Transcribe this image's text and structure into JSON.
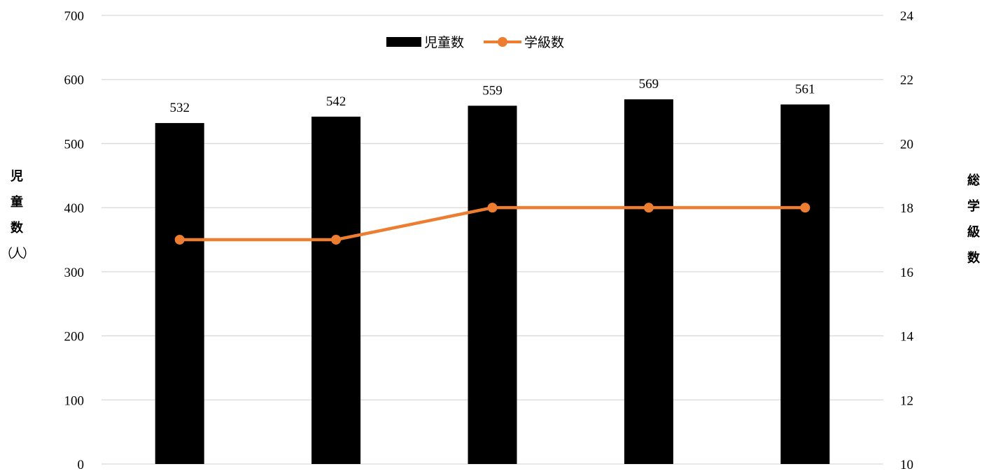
{
  "chart_data": {
    "type": "bar",
    "categories": [
      "",
      "",
      "",
      "",
      ""
    ],
    "series": [
      {
        "name": "児童数",
        "type": "bar",
        "axis": "left",
        "color": "#000000",
        "values": [
          532,
          542,
          559,
          569,
          561
        ]
      },
      {
        "name": "学級数",
        "type": "line",
        "axis": "right",
        "color": "#ED7D31",
        "values": [
          17,
          17,
          18,
          18,
          18
        ]
      }
    ],
    "ylabel_left": [
      "児",
      "童",
      "数",
      "（人）"
    ],
    "ylabel_right": [
      "総",
      "学",
      "級",
      "数"
    ],
    "ylim_left": [
      0,
      700
    ],
    "ylim_right": [
      10,
      24
    ],
    "yticks_left": [
      0,
      100,
      200,
      300,
      400,
      500,
      600,
      700
    ],
    "yticks_right": [
      10,
      12,
      14,
      16,
      18,
      20,
      22,
      24
    ],
    "grid": true,
    "legend_position": "top-center",
    "data_labels": true
  }
}
